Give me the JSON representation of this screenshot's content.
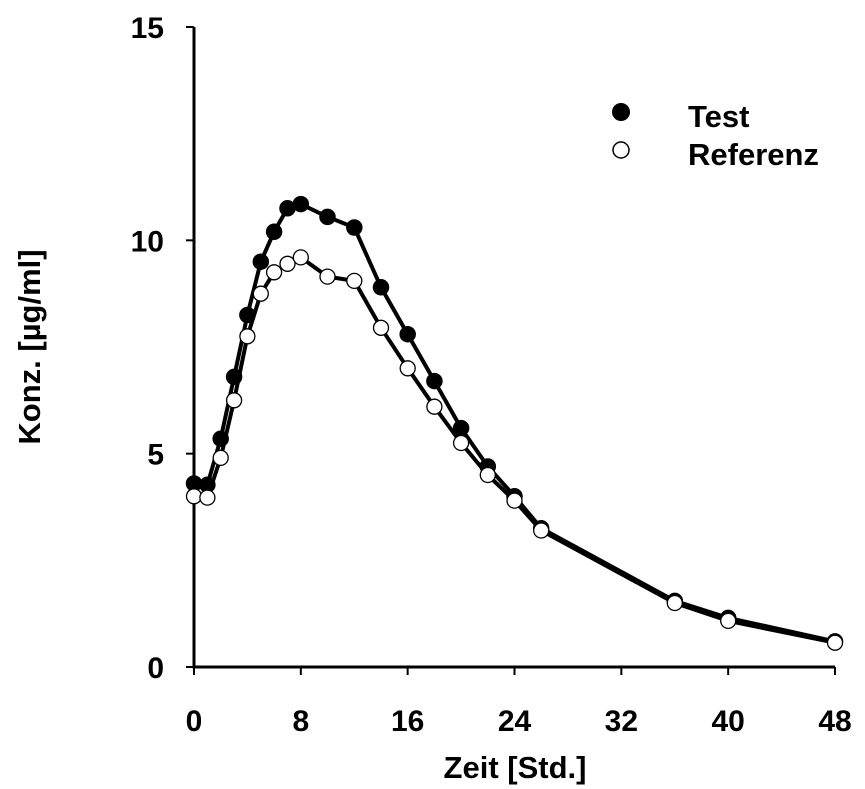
{
  "chart_data": {
    "type": "line",
    "xlabel": "Zeit [Std.]",
    "ylabel": "Konz. [µg/ml]",
    "xlim": [
      0,
      48
    ],
    "ylim": [
      0,
      15
    ],
    "xticks": [
      0,
      8,
      16,
      24,
      32,
      40,
      48
    ],
    "yticks": [
      0,
      5,
      10,
      15
    ],
    "grid": false,
    "legend_position": "top-right",
    "series": [
      {
        "name": "Test",
        "marker": "filled-circle",
        "color": "#000000",
        "x": [
          0,
          1,
          2,
          3,
          4,
          5,
          6,
          7,
          8,
          10,
          12,
          14,
          16,
          18,
          20,
          22,
          24,
          26,
          36,
          40,
          48
        ],
        "y": [
          4.3,
          4.27,
          5.35,
          6.8,
          8.25,
          9.5,
          10.2,
          10.75,
          10.85,
          10.55,
          10.3,
          8.9,
          7.8,
          6.7,
          5.6,
          4.7,
          4.0,
          3.25,
          1.55,
          1.15,
          0.6
        ]
      },
      {
        "name": "Referenz",
        "marker": "open-circle",
        "color": "#000000",
        "x": [
          0,
          1,
          2,
          3,
          4,
          5,
          6,
          7,
          8,
          10,
          12,
          14,
          16,
          18,
          20,
          22,
          24,
          26,
          36,
          40,
          48
        ],
        "y": [
          4.0,
          3.97,
          4.9,
          6.25,
          7.75,
          8.75,
          9.25,
          9.45,
          9.6,
          9.15,
          9.05,
          7.95,
          7.0,
          6.1,
          5.25,
          4.5,
          3.9,
          3.2,
          1.5,
          1.08,
          0.57
        ]
      }
    ]
  }
}
